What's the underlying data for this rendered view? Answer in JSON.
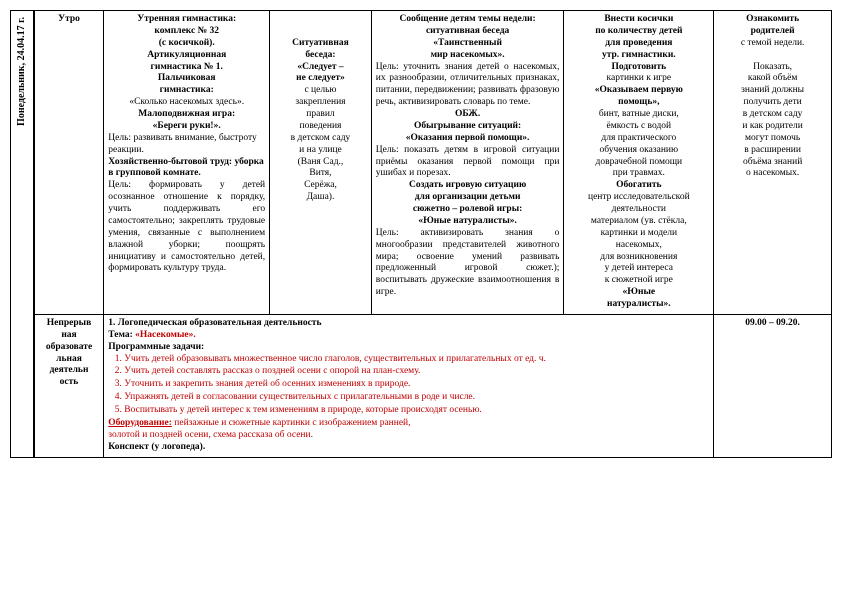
{
  "date_vertical": "Понедельник,  24.04.17 г.",
  "row1": {
    "label": "Утро",
    "c1_l1": "Утренняя гимнастика:",
    "c1_l2": "комплекс № 32",
    "c1_l3": "(с косичкой).",
    "c1_l4": "Артикуляционная",
    "c1_l5": "гимнастика № 1.",
    "c1_l6": "Пальчиковая",
    "c1_l7": "гимнастика:",
    "c1_l8": "«Сколько насекомых здесь».",
    "c1_l9": "Малоподвижная игра:",
    "c1_l10": "«Береги руки!».",
    "c1_goal1": "Цель: развивать внимание, быстроту реакции.",
    "c1_l11": "Хозяйственно-бытовой труд: уборка в групповой комнате.",
    "c1_goal2": "Цель: формировать у детей осознанное отношение к порядку, учить поддерживать его самостоятельно; закреплять трудовые умения, связанные с выполнением влажной уборки; поощрять инициативу и самостоятельно детей, формировать культуру труда.",
    "c2_l1": "Ситуативная",
    "c2_l2": "беседа:",
    "c2_l3": "«Следует –",
    "c2_l4": "не следует»",
    "c2_l5": "с целью",
    "c2_l6": "закрепления",
    "c2_l7": "правил",
    "c2_l8": "поведения",
    "c2_l9": "в детском саду",
    "c2_l10": "и на улице",
    "c2_l11": "(Ваня Сад.,",
    "c2_l12": "Витя,",
    "c2_l13": "Серёжа,",
    "c2_l14": "Даша).",
    "c3_l1": "Сообщение детям темы недели:",
    "c3_l2": "ситуативная беседа",
    "c3_l3": "«Таинственный",
    "c3_l4": "мир насекомых».",
    "c3_goal1": "Цель: уточнить знания детей о насекомых, их разнообразии, отличительных признаках, питании, передвижении; развивать фразовую речь, активизировать словарь по теме.",
    "c3_l5": "ОБЖ.",
    "c3_l6": "Обыгрывание ситуаций:",
    "c3_l7": "«Оказания первой помощи».",
    "c3_goal2": "Цель: показать детям в игровой ситуации приёмы оказания первой помощи при ушибах и порезах.",
    "c3_l8": "Создать игровую ситуацию",
    "c3_l9": "для организации детьми",
    "c3_l10": "сюжетно – ролевой игры:",
    "c3_l11": "«Юные натуралисты».",
    "c3_goal3": "Цель: активизировать знания о многообразии представителей животного мира; освоение умений развивать предложенный игровой сюжет.); воспитывать дружеские взаимоотношения в игре.",
    "c4_l1": "Внести   косички",
    "c4_l2": "по количеству детей",
    "c4_l3": "для проведения",
    "c4_l4": "утр. гимнастики.",
    "c4_l5": "Подготовить",
    "c4_l6": "картинки к игре",
    "c4_l7": "«Оказываем первую",
    "c4_l8": "помощь»,",
    "c4_l9": "бинт, ватные диски,",
    "c4_l10": "ёмкость с водой",
    "c4_l11": "для практического",
    "c4_l12": "обучения оказанию",
    "c4_l13": "доврачебной помощи",
    "c4_l14": "при травмах.",
    "c4_l15": "Обогатить",
    "c4_l16": "центр исследовательской",
    "c4_l17": "деятельности",
    "c4_l18": "материалом (ув. стёкла,",
    "c4_l19": "картинки и модели",
    "c4_l20": "насекомых,",
    "c4_l21": "для возникновения",
    "c4_l22": "у детей интереса",
    "c4_l23": "к сюжетной игре",
    "c4_l24": "«Юные",
    "c4_l25": "натуралисты».",
    "c5_l1": "Ознакомить",
    "c5_l2": "родителей",
    "c5_l3": "с темой недели.",
    "c5_l4": "Показать,",
    "c5_l5": "какой объём",
    "c5_l6": "знаний должны",
    "c5_l7": "получить дети",
    "c5_l8": "в детском саду",
    "c5_l9": "и как родители",
    "c5_l10": "могут помочь",
    "c5_l11": "в расширении",
    "c5_l12": "объёма знаний",
    "c5_l13": "о насекомых."
  },
  "row2": {
    "label_l1": "Непрерыв",
    "label_l2": "ная",
    "label_l3": "образовате",
    "label_l4": "льная",
    "label_l5": "деятельн",
    "label_l6": "ость",
    "line1": "1. Логопедическая образовательная деятельность",
    "line2a": "Тема: ",
    "line2b": "«Насекомые».",
    "line3": "Программные задачи:",
    "t1": "Учить детей образовывать множественное число глаголов, существительных и прилагательных от ед. ч.",
    "t2": "Учить детей составлять рассказ о поздней осени с опорой на план-схему.",
    "t3": "Уточнить и закрепить знания детей об осенних изменениях в природе.",
    "t4": "Упражнять детей в согласовании существительных с прилагательными в роде и числе.",
    "t5": "Воспитывать у детей интерес к тем изменениям в природе, которые происходят осенью.",
    "equip_label": "Оборудование:",
    "equip_text": " пейзажные и сюжетные картинки с изображением ранней,",
    "equip_text2": "золотой и поздней осени, схема рассказа об осени.",
    "konspekt": "Конспект   (у логопеда).",
    "time": "09.00 – 09.20."
  }
}
